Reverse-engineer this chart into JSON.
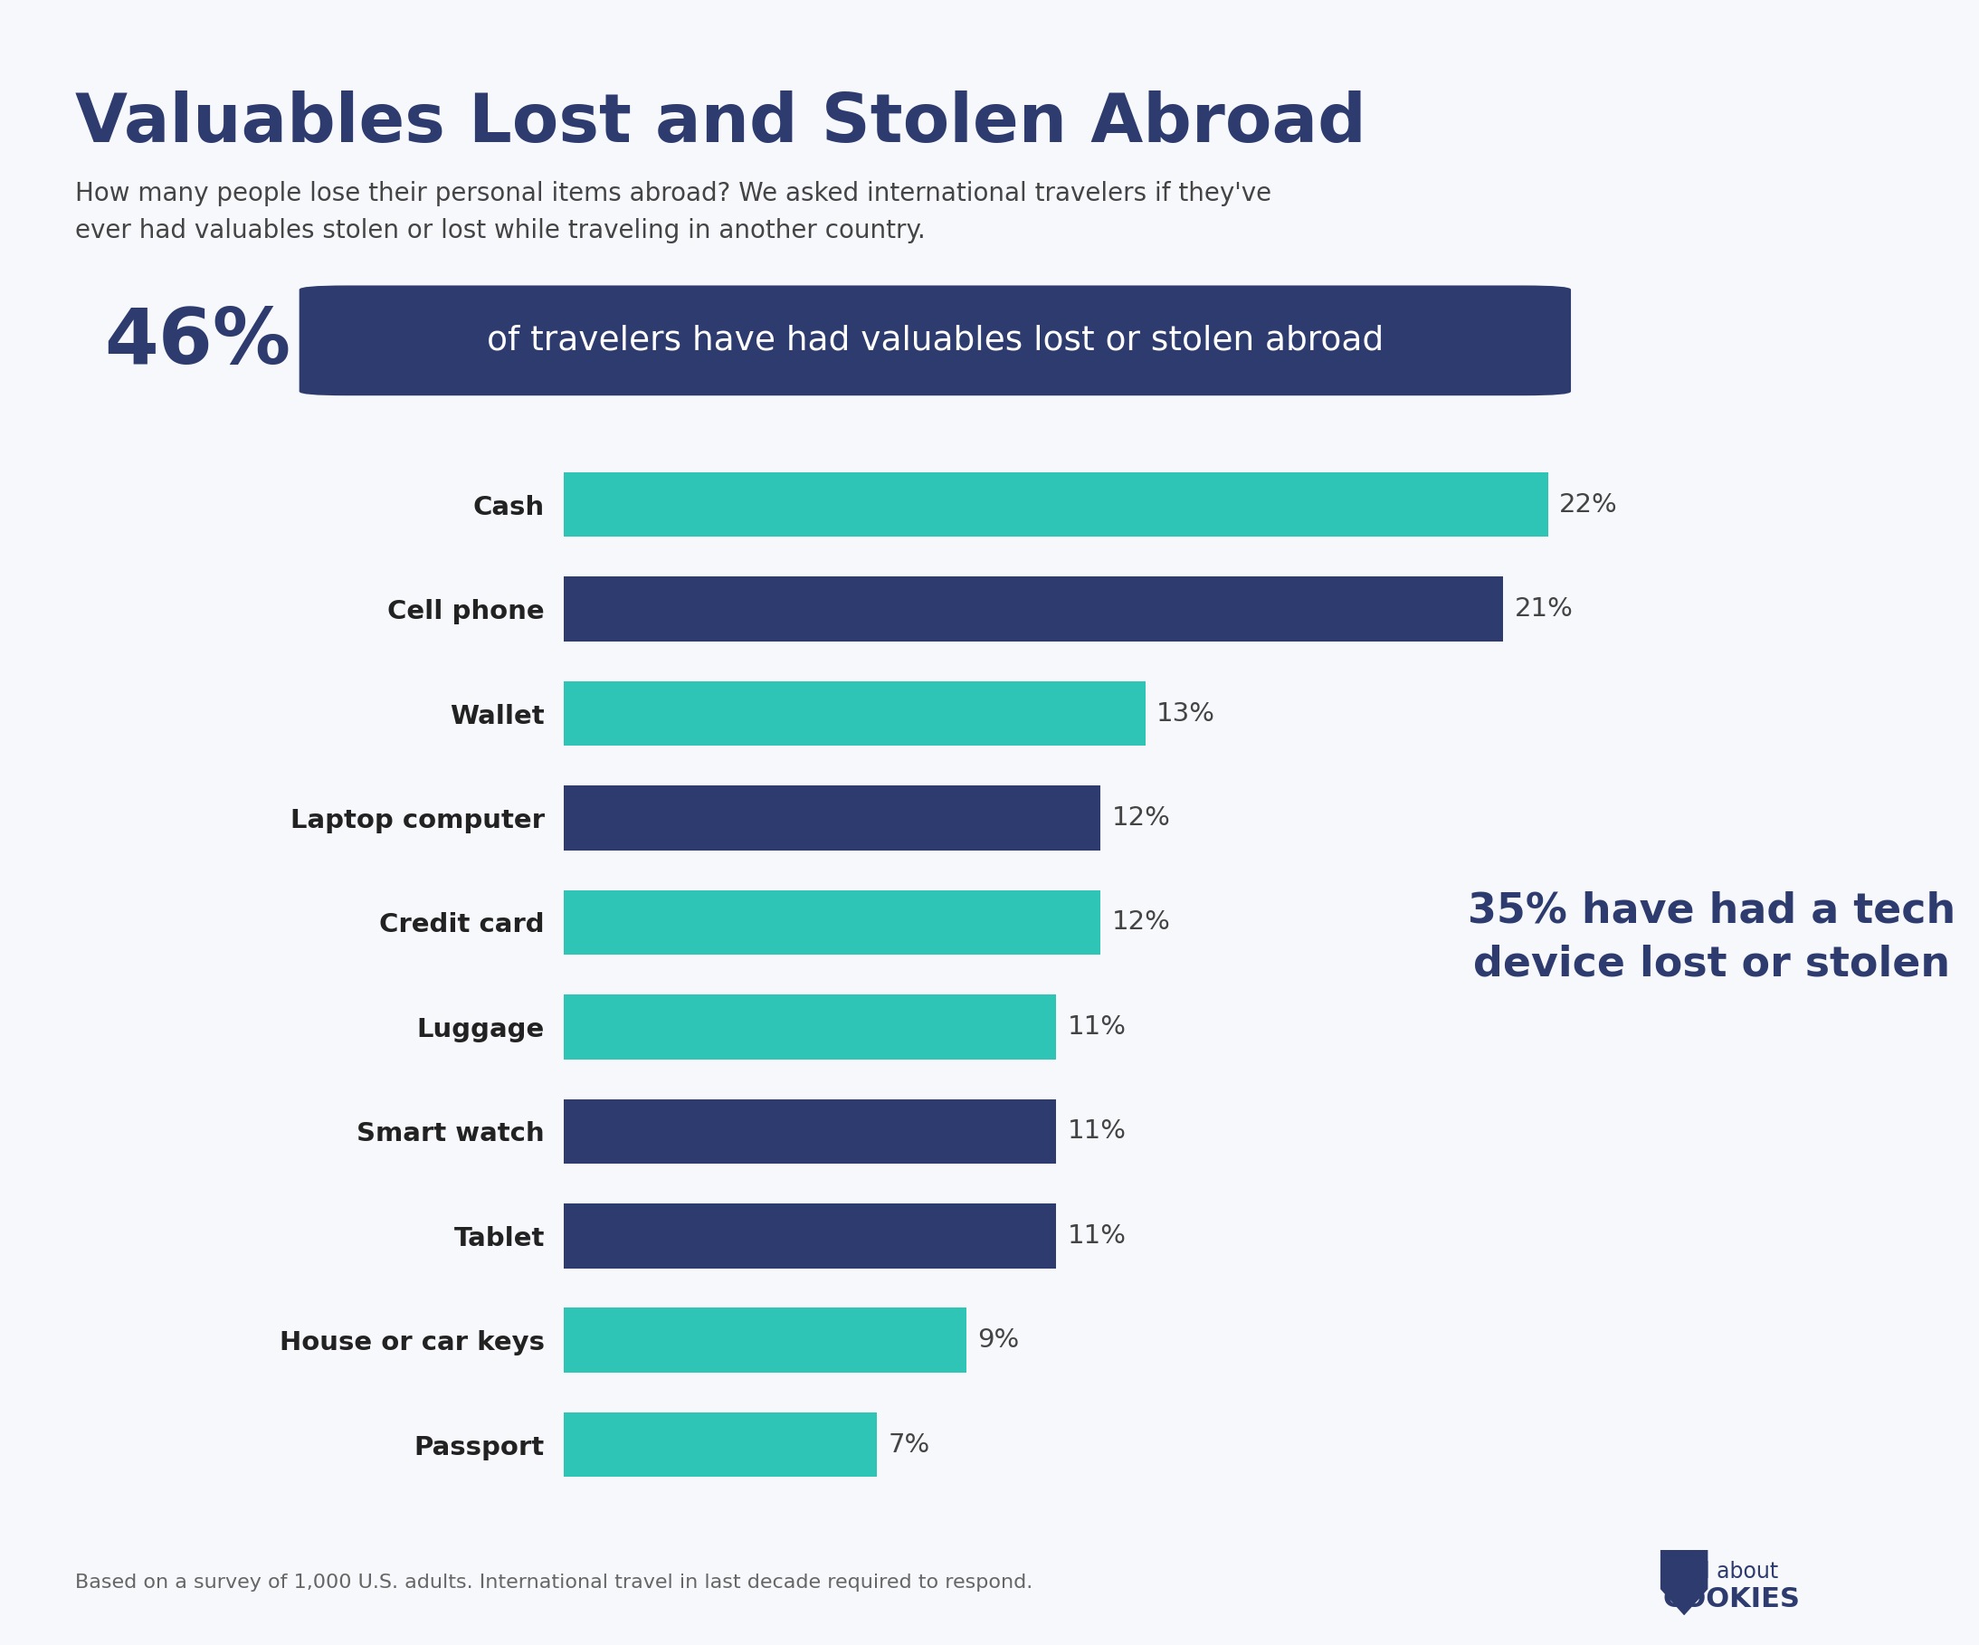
{
  "title": "Valuables Lost and Stolen Abroad",
  "subtitle": "How many people lose their personal items abroad? We asked international travelers if they've\never had valuables stolen or lost while traveling in another country.",
  "highlight_pct": "46%",
  "highlight_text": "of travelers have had valuables lost or stolen abroad",
  "annotation_text": "35% have had a tech\ndevice lost or stolen",
  "footer": "Based on a survey of 1,000 U.S. adults. International travel in last decade required to respond.",
  "categories": [
    "Cash",
    "Cell phone",
    "Wallet",
    "Laptop computer",
    "Credit card",
    "Luggage",
    "Smart watch",
    "Tablet",
    "House or car keys",
    "Passport"
  ],
  "values": [
    22,
    21,
    13,
    12,
    12,
    11,
    11,
    11,
    9,
    7
  ],
  "bar_colors": [
    "#2ec4b6",
    "#2d3b6e",
    "#2ec4b6",
    "#2d3b6e",
    "#2ec4b6",
    "#2ec4b6",
    "#2d3b6e",
    "#2d3b6e",
    "#2ec4b6",
    "#2ec4b6"
  ],
  "title_color": "#2d3b6e",
  "subtitle_color": "#444444",
  "highlight_pct_color": "#2d3b6e",
  "highlight_box_color": "#2d3b6e",
  "highlight_text_color": "#ffffff",
  "annotation_color": "#2d3b6e",
  "top_bar_color": "#2d3b6e",
  "background_color": "#f7f8fc",
  "xlim": [
    0,
    25
  ]
}
